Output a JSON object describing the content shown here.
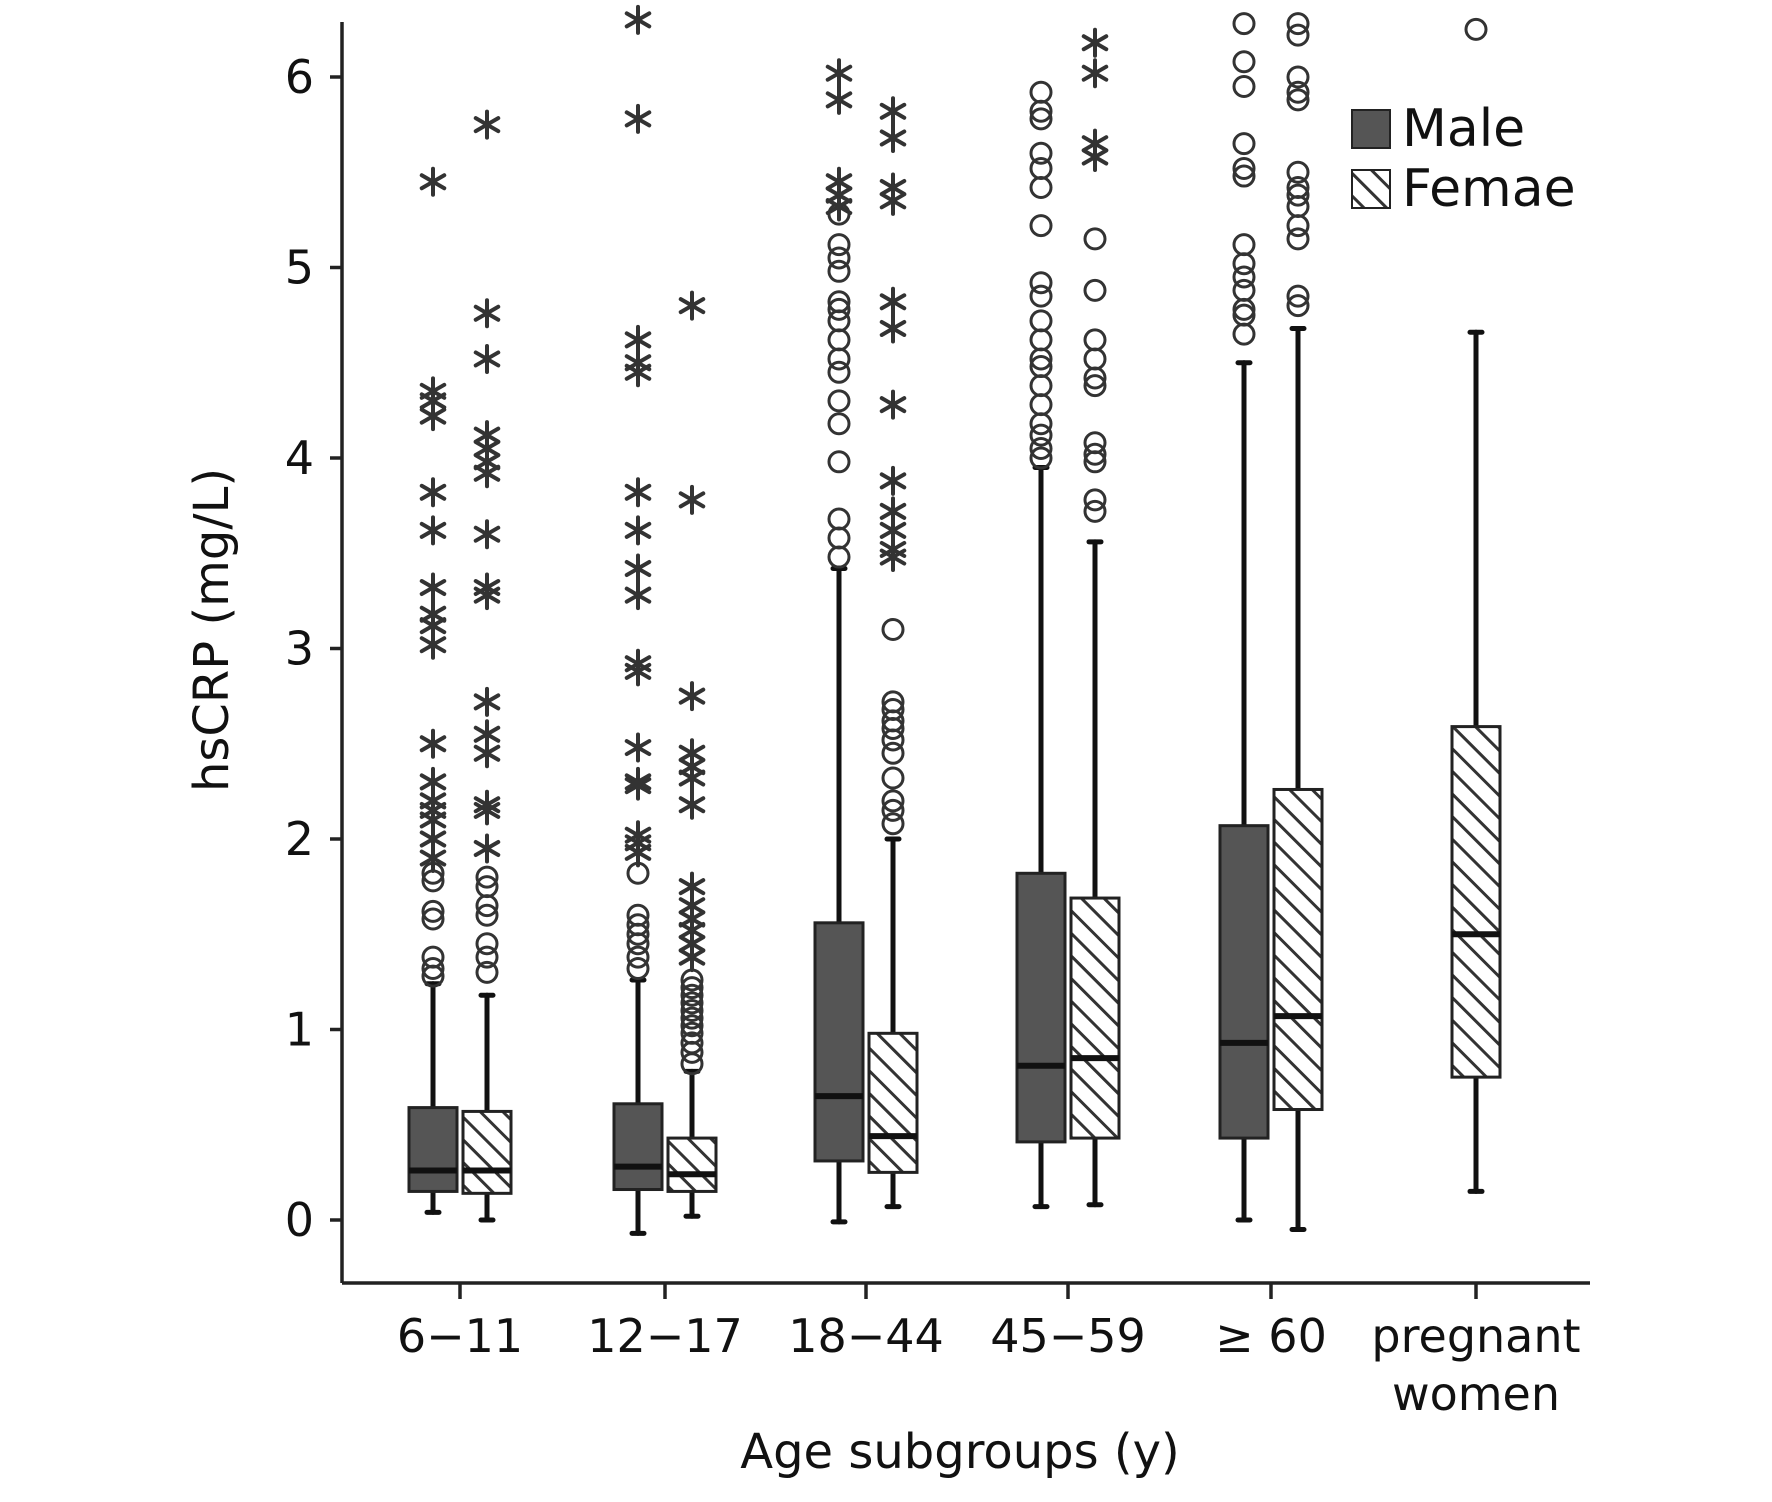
{
  "chart_data": {
    "type": "boxplot",
    "title": "",
    "xlabel": "Age subgroups (y)",
    "ylabel": "hsCRP (mg/L)",
    "ylim": [
      -0.3,
      6.3
    ],
    "yticks": [
      0,
      1,
      2,
      3,
      4,
      5,
      6
    ],
    "legend_position": "top-right",
    "grid": false,
    "colors": {
      "male_fill": "#555555",
      "female_fill": "#ffffff",
      "female_hatch": "#333333",
      "outlier": "#333333"
    },
    "series": [
      {
        "name": "Male",
        "style": "solid"
      },
      {
        "name": "Femae",
        "style": "hatched"
      }
    ],
    "categories": [
      {
        "label_lines": [
          "6−11"
        ]
      },
      {
        "label_lines": [
          "12−17"
        ]
      },
      {
        "label_lines": [
          "18−44"
        ]
      },
      {
        "label_lines": [
          "45−59"
        ]
      },
      {
        "label_lines": [
          "≥ 60"
        ]
      },
      {
        "label_lines": [
          "pregnant",
          "women"
        ]
      }
    ],
    "boxes": [
      {
        "category": 0,
        "series": "Male",
        "whisker_low": 0.04,
        "q1": 0.15,
        "median": 0.26,
        "q3": 0.59,
        "whisker_high": 1.24,
        "outliers_circle": [
          1.28,
          1.32,
          1.38,
          1.58,
          1.62,
          1.78,
          1.82
        ],
        "outliers_star": [
          1.9,
          2.0,
          2.1,
          2.15,
          2.2,
          2.3,
          2.5,
          3.02,
          3.12,
          3.18,
          3.32,
          3.62,
          3.82,
          4.22,
          4.3,
          4.35,
          5.45
        ]
      },
      {
        "category": 0,
        "series": "Femae",
        "whisker_low": 0.0,
        "q1": 0.14,
        "median": 0.26,
        "q3": 0.57,
        "whisker_high": 1.18,
        "outliers_circle": [
          1.3,
          1.38,
          1.45,
          1.6,
          1.65,
          1.75,
          1.8
        ],
        "outliers_star": [
          1.95,
          2.15,
          2.18,
          2.45,
          2.55,
          2.72,
          3.28,
          3.32,
          3.6,
          3.92,
          3.98,
          4.05,
          4.12,
          4.52,
          4.76,
          5.75
        ]
      },
      {
        "category": 1,
        "series": "Male",
        "whisker_low": -0.07,
        "q1": 0.16,
        "median": 0.28,
        "q3": 0.61,
        "whisker_high": 1.26,
        "outliers_circle": [
          1.32,
          1.38,
          1.45,
          1.5,
          1.55,
          1.6,
          1.82
        ],
        "outliers_star": [
          1.93,
          1.98,
          2.02,
          2.28,
          2.3,
          2.48,
          2.88,
          2.92,
          3.28,
          3.42,
          3.62,
          3.82,
          4.45,
          4.5,
          4.62,
          5.78,
          6.3
        ]
      },
      {
        "category": 1,
        "series": "Femae",
        "whisker_low": 0.02,
        "q1": 0.15,
        "median": 0.24,
        "q3": 0.43,
        "whisker_high": 0.78,
        "outliers_circle": [
          0.82,
          0.88,
          0.93,
          0.98,
          1.02,
          1.06,
          1.1,
          1.14,
          1.18,
          1.22,
          1.26
        ],
        "outliers_star": [
          1.38,
          1.45,
          1.52,
          1.58,
          1.65,
          1.75,
          2.18,
          2.32,
          2.38,
          2.45,
          2.75,
          3.78,
          4.8
        ]
      },
      {
        "category": 2,
        "series": "Male",
        "whisker_low": -0.01,
        "q1": 0.31,
        "median": 0.65,
        "q3": 1.56,
        "whisker_high": 3.42,
        "outliers_circle": [
          3.48,
          3.58,
          3.68,
          3.98,
          4.18,
          4.3,
          4.45,
          4.52,
          4.62,
          4.72,
          4.78,
          4.82,
          4.98,
          5.05,
          5.12,
          5.28
        ],
        "outliers_star": [
          5.32,
          5.38,
          5.45,
          5.88,
          6.02
        ]
      },
      {
        "category": 2,
        "series": "Femae",
        "whisker_low": 0.07,
        "q1": 0.25,
        "median": 0.44,
        "q3": 0.98,
        "whisker_high": 2.0,
        "outliers_circle": [
          2.08,
          2.15,
          2.2,
          2.32,
          2.45,
          2.52,
          2.58,
          2.62,
          2.68,
          2.72,
          3.1
        ],
        "outliers_star": [
          3.48,
          3.52,
          3.62,
          3.72,
          3.88,
          4.28,
          4.68,
          4.82,
          5.35,
          5.42,
          5.68,
          5.82
        ]
      },
      {
        "category": 3,
        "series": "Male",
        "whisker_low": 0.07,
        "q1": 0.41,
        "median": 0.81,
        "q3": 1.82,
        "whisker_high": 3.95,
        "outliers_circle": [
          4.0,
          4.05,
          4.12,
          4.18,
          4.28,
          4.38,
          4.48,
          4.52,
          4.62,
          4.72,
          4.85,
          4.92,
          5.22,
          5.42,
          5.52,
          5.6,
          5.78,
          5.82,
          5.92
        ]
      },
      {
        "category": 3,
        "series": "Femae",
        "whisker_low": 0.08,
        "q1": 0.43,
        "median": 0.85,
        "q3": 1.69,
        "whisker_high": 3.56,
        "outliers_circle": [
          3.72,
          3.78,
          3.98,
          4.02,
          4.08,
          4.38,
          4.42,
          4.52,
          4.62,
          4.88,
          5.15
        ],
        "outliers_star": [
          5.58,
          5.65,
          6.02,
          6.18
        ]
      },
      {
        "category": 4,
        "series": "Male",
        "whisker_low": 0.0,
        "q1": 0.43,
        "median": 0.93,
        "q3": 2.07,
        "whisker_high": 4.5,
        "outliers_circle": [
          4.65,
          4.75,
          4.78,
          4.88,
          4.95,
          5.02,
          5.12,
          5.48,
          5.52,
          5.65,
          5.95,
          6.08,
          6.28
        ]
      },
      {
        "category": 4,
        "series": "Femae",
        "whisker_low": -0.05,
        "q1": 0.58,
        "median": 1.07,
        "q3": 2.26,
        "whisker_high": 4.68,
        "outliers_circle": [
          4.8,
          4.85,
          5.15,
          5.22,
          5.32,
          5.38,
          5.42,
          5.5,
          5.88,
          5.92,
          6.0,
          6.22,
          6.28
        ]
      },
      {
        "category": 5,
        "series": "Femae",
        "whisker_low": 0.15,
        "q1": 0.75,
        "median": 1.5,
        "q3": 2.59,
        "whisker_high": 4.66,
        "outliers_circle": [
          6.25
        ]
      }
    ]
  }
}
